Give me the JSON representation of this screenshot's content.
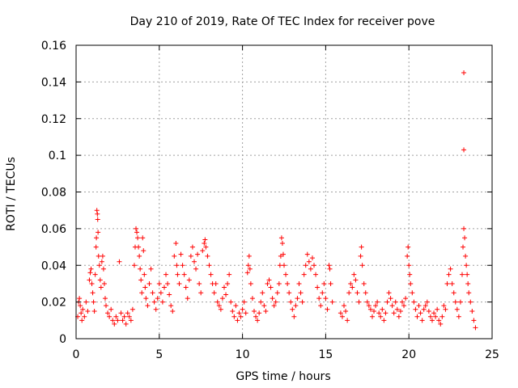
{
  "chart_data": {
    "type": "scatter",
    "title": "Day 210 of 2019, Rate Of TEC Index for receiver pove",
    "xlabel": "GPS time / hours",
    "ylabel": "ROTI / TECUs",
    "xlim": [
      0,
      25
    ],
    "ylim": [
      0,
      0.16
    ],
    "xticks": [
      "0",
      "5",
      "10",
      "15",
      "20",
      "25"
    ],
    "yticks": [
      "0",
      "0.02",
      "0.04",
      "0.06",
      "0.08",
      "0.1",
      "0.12",
      "0.14",
      "0.16"
    ],
    "grid": true,
    "marker": "plus",
    "series": [
      {
        "color": "#ff0000",
        "points": [
          [
            0.1,
            0.012
          ],
          [
            0.15,
            0.02
          ],
          [
            0.2,
            0.022
          ],
          [
            0.25,
            0.018
          ],
          [
            0.3,
            0.014
          ],
          [
            0.35,
            0.01
          ],
          [
            0.4,
            0.016
          ],
          [
            0.5,
            0.012
          ],
          [
            0.6,
            0.02
          ],
          [
            0.7,
            0.015
          ],
          [
            0.8,
            0.032
          ],
          [
            0.85,
            0.036
          ],
          [
            0.9,
            0.038
          ],
          [
            0.95,
            0.03
          ],
          [
            1.0,
            0.025
          ],
          [
            1.05,
            0.02
          ],
          [
            1.1,
            0.015
          ],
          [
            1.15,
            0.035
          ],
          [
            1.2,
            0.05
          ],
          [
            1.22,
            0.055
          ],
          [
            1.25,
            0.07
          ],
          [
            1.28,
            0.068
          ],
          [
            1.3,
            0.065
          ],
          [
            1.32,
            0.058
          ],
          [
            1.35,
            0.045
          ],
          [
            1.4,
            0.04
          ],
          [
            1.45,
            0.032
          ],
          [
            1.5,
            0.028
          ],
          [
            1.55,
            0.042
          ],
          [
            1.6,
            0.045
          ],
          [
            1.65,
            0.038
          ],
          [
            1.7,
            0.03
          ],
          [
            1.75,
            0.022
          ],
          [
            1.8,
            0.018
          ],
          [
            1.9,
            0.014
          ],
          [
            2.0,
            0.012
          ],
          [
            2.1,
            0.016
          ],
          [
            2.2,
            0.01
          ],
          [
            2.3,
            0.008
          ],
          [
            2.4,
            0.012
          ],
          [
            2.5,
            0.01
          ],
          [
            2.6,
            0.042
          ],
          [
            2.7,
            0.014
          ],
          [
            2.8,
            0.01
          ],
          [
            2.9,
            0.012
          ],
          [
            3.0,
            0.008
          ],
          [
            3.1,
            0.014
          ],
          [
            3.2,
            0.012
          ],
          [
            3.3,
            0.01
          ],
          [
            3.4,
            0.016
          ],
          [
            3.5,
            0.04
          ],
          [
            3.55,
            0.05
          ],
          [
            3.6,
            0.06
          ],
          [
            3.65,
            0.058
          ],
          [
            3.7,
            0.055
          ],
          [
            3.75,
            0.05
          ],
          [
            3.8,
            0.045
          ],
          [
            3.85,
            0.038
          ],
          [
            3.9,
            0.032
          ],
          [
            3.95,
            0.025
          ],
          [
            4.0,
            0.055
          ],
          [
            4.05,
            0.048
          ],
          [
            4.1,
            0.035
          ],
          [
            4.15,
            0.028
          ],
          [
            4.2,
            0.022
          ],
          [
            4.3,
            0.018
          ],
          [
            4.4,
            0.03
          ],
          [
            4.5,
            0.038
          ],
          [
            4.6,
            0.025
          ],
          [
            4.7,
            0.02
          ],
          [
            4.8,
            0.016
          ],
          [
            4.9,
            0.022
          ],
          [
            5.0,
            0.03
          ],
          [
            5.1,
            0.025
          ],
          [
            5.2,
            0.02
          ],
          [
            5.3,
            0.028
          ],
          [
            5.4,
            0.035
          ],
          [
            5.5,
            0.03
          ],
          [
            5.6,
            0.024
          ],
          [
            5.7,
            0.018
          ],
          [
            5.8,
            0.015
          ],
          [
            5.9,
            0.045
          ],
          [
            6.0,
            0.052
          ],
          [
            6.05,
            0.04
          ],
          [
            6.1,
            0.035
          ],
          [
            6.2,
            0.03
          ],
          [
            6.3,
            0.046
          ],
          [
            6.4,
            0.04
          ],
          [
            6.5,
            0.035
          ],
          [
            6.6,
            0.028
          ],
          [
            6.7,
            0.022
          ],
          [
            6.8,
            0.032
          ],
          [
            6.9,
            0.045
          ],
          [
            7.0,
            0.05
          ],
          [
            7.1,
            0.042
          ],
          [
            7.2,
            0.038
          ],
          [
            7.3,
            0.046
          ],
          [
            7.4,
            0.03
          ],
          [
            7.5,
            0.025
          ],
          [
            7.6,
            0.048
          ],
          [
            7.7,
            0.052
          ],
          [
            7.75,
            0.054
          ],
          [
            7.8,
            0.05
          ],
          [
            7.9,
            0.045
          ],
          [
            8.0,
            0.04
          ],
          [
            8.1,
            0.035
          ],
          [
            8.2,
            0.03
          ],
          [
            8.3,
            0.025
          ],
          [
            8.4,
            0.03
          ],
          [
            8.5,
            0.02
          ],
          [
            8.6,
            0.018
          ],
          [
            8.7,
            0.016
          ],
          [
            8.8,
            0.022
          ],
          [
            8.9,
            0.028
          ],
          [
            9.0,
            0.024
          ],
          [
            9.1,
            0.03
          ],
          [
            9.2,
            0.035
          ],
          [
            9.3,
            0.02
          ],
          [
            9.4,
            0.015
          ],
          [
            9.5,
            0.012
          ],
          [
            9.6,
            0.018
          ],
          [
            9.7,
            0.01
          ],
          [
            9.8,
            0.014
          ],
          [
            9.9,
            0.012
          ],
          [
            10.0,
            0.016
          ],
          [
            10.1,
            0.02
          ],
          [
            10.2,
            0.014
          ],
          [
            10.3,
            0.036
          ],
          [
            10.35,
            0.04
          ],
          [
            10.4,
            0.045
          ],
          [
            10.45,
            0.038
          ],
          [
            10.5,
            0.03
          ],
          [
            10.6,
            0.022
          ],
          [
            10.7,
            0.015
          ],
          [
            10.8,
            0.012
          ],
          [
            10.9,
            0.01
          ],
          [
            11.0,
            0.014
          ],
          [
            11.1,
            0.02
          ],
          [
            11.2,
            0.025
          ],
          [
            11.3,
            0.018
          ],
          [
            11.4,
            0.015
          ],
          [
            11.5,
            0.03
          ],
          [
            11.6,
            0.032
          ],
          [
            11.7,
            0.028
          ],
          [
            11.8,
            0.022
          ],
          [
            11.9,
            0.018
          ],
          [
            12.0,
            0.02
          ],
          [
            12.1,
            0.025
          ],
          [
            12.2,
            0.03
          ],
          [
            12.25,
            0.04
          ],
          [
            12.3,
            0.045
          ],
          [
            12.35,
            0.055
          ],
          [
            12.4,
            0.052
          ],
          [
            12.45,
            0.046
          ],
          [
            12.5,
            0.04
          ],
          [
            12.6,
            0.035
          ],
          [
            12.7,
            0.03
          ],
          [
            12.8,
            0.025
          ],
          [
            12.9,
            0.02
          ],
          [
            13.0,
            0.016
          ],
          [
            13.1,
            0.012
          ],
          [
            13.2,
            0.018
          ],
          [
            13.3,
            0.022
          ],
          [
            13.4,
            0.03
          ],
          [
            13.5,
            0.025
          ],
          [
            13.6,
            0.02
          ],
          [
            13.7,
            0.035
          ],
          [
            13.8,
            0.04
          ],
          [
            13.9,
            0.046
          ],
          [
            14.0,
            0.042
          ],
          [
            14.1,
            0.038
          ],
          [
            14.2,
            0.044
          ],
          [
            14.3,
            0.04
          ],
          [
            14.4,
            0.035
          ],
          [
            14.5,
            0.028
          ],
          [
            14.6,
            0.022
          ],
          [
            14.7,
            0.018
          ],
          [
            14.8,
            0.025
          ],
          [
            14.9,
            0.03
          ],
          [
            15.0,
            0.022
          ],
          [
            15.1,
            0.016
          ],
          [
            15.2,
            0.04
          ],
          [
            15.25,
            0.038
          ],
          [
            15.3,
            0.03
          ],
          [
            15.4,
            0.02
          ],
          [
            15.9,
            0.014
          ],
          [
            16.0,
            0.012
          ],
          [
            16.1,
            0.018
          ],
          [
            16.2,
            0.015
          ],
          [
            16.3,
            0.01
          ],
          [
            16.4,
            0.025
          ],
          [
            16.5,
            0.03
          ],
          [
            16.6,
            0.028
          ],
          [
            16.7,
            0.035
          ],
          [
            16.8,
            0.032
          ],
          [
            16.9,
            0.025
          ],
          [
            17.0,
            0.02
          ],
          [
            17.1,
            0.045
          ],
          [
            17.15,
            0.05
          ],
          [
            17.2,
            0.04
          ],
          [
            17.3,
            0.03
          ],
          [
            17.4,
            0.025
          ],
          [
            17.5,
            0.02
          ],
          [
            17.6,
            0.018
          ],
          [
            17.7,
            0.016
          ],
          [
            17.8,
            0.012
          ],
          [
            17.9,
            0.015
          ],
          [
            18.0,
            0.018
          ],
          [
            18.1,
            0.02
          ],
          [
            18.2,
            0.014
          ],
          [
            18.3,
            0.012
          ],
          [
            18.4,
            0.016
          ],
          [
            18.5,
            0.01
          ],
          [
            18.6,
            0.014
          ],
          [
            18.7,
            0.02
          ],
          [
            18.8,
            0.025
          ],
          [
            18.9,
            0.022
          ],
          [
            19.0,
            0.018
          ],
          [
            19.1,
            0.014
          ],
          [
            19.2,
            0.02
          ],
          [
            19.3,
            0.016
          ],
          [
            19.4,
            0.012
          ],
          [
            19.5,
            0.015
          ],
          [
            19.6,
            0.02
          ],
          [
            19.7,
            0.018
          ],
          [
            19.8,
            0.022
          ],
          [
            19.9,
            0.045
          ],
          [
            19.95,
            0.05
          ],
          [
            20.0,
            0.04
          ],
          [
            20.05,
            0.035
          ],
          [
            20.1,
            0.03
          ],
          [
            20.2,
            0.025
          ],
          [
            20.3,
            0.02
          ],
          [
            20.4,
            0.016
          ],
          [
            20.5,
            0.012
          ],
          [
            20.6,
            0.018
          ],
          [
            20.7,
            0.014
          ],
          [
            20.8,
            0.01
          ],
          [
            20.9,
            0.016
          ],
          [
            21.0,
            0.018
          ],
          [
            21.1,
            0.02
          ],
          [
            21.2,
            0.015
          ],
          [
            21.3,
            0.012
          ],
          [
            21.4,
            0.01
          ],
          [
            21.5,
            0.014
          ],
          [
            21.6,
            0.012
          ],
          [
            21.7,
            0.016
          ],
          [
            21.8,
            0.01
          ],
          [
            21.9,
            0.008
          ],
          [
            22.0,
            0.012
          ],
          [
            22.1,
            0.018
          ],
          [
            22.2,
            0.016
          ],
          [
            22.3,
            0.03
          ],
          [
            22.4,
            0.035
          ],
          [
            22.5,
            0.038
          ],
          [
            22.6,
            0.03
          ],
          [
            22.7,
            0.025
          ],
          [
            22.8,
            0.02
          ],
          [
            22.9,
            0.016
          ],
          [
            23.0,
            0.012
          ],
          [
            23.1,
            0.02
          ],
          [
            23.2,
            0.035
          ],
          [
            23.25,
            0.05
          ],
          [
            23.3,
            0.06
          ],
          [
            23.35,
            0.055
          ],
          [
            23.4,
            0.045
          ],
          [
            23.45,
            0.04
          ],
          [
            23.5,
            0.035
          ],
          [
            23.55,
            0.03
          ],
          [
            23.6,
            0.025
          ],
          [
            23.7,
            0.02
          ],
          [
            23.8,
            0.015
          ],
          [
            23.9,
            0.01
          ],
          [
            24.0,
            0.006
          ],
          [
            23.3,
            0.103
          ],
          [
            23.3,
            0.145
          ]
        ]
      }
    ]
  }
}
